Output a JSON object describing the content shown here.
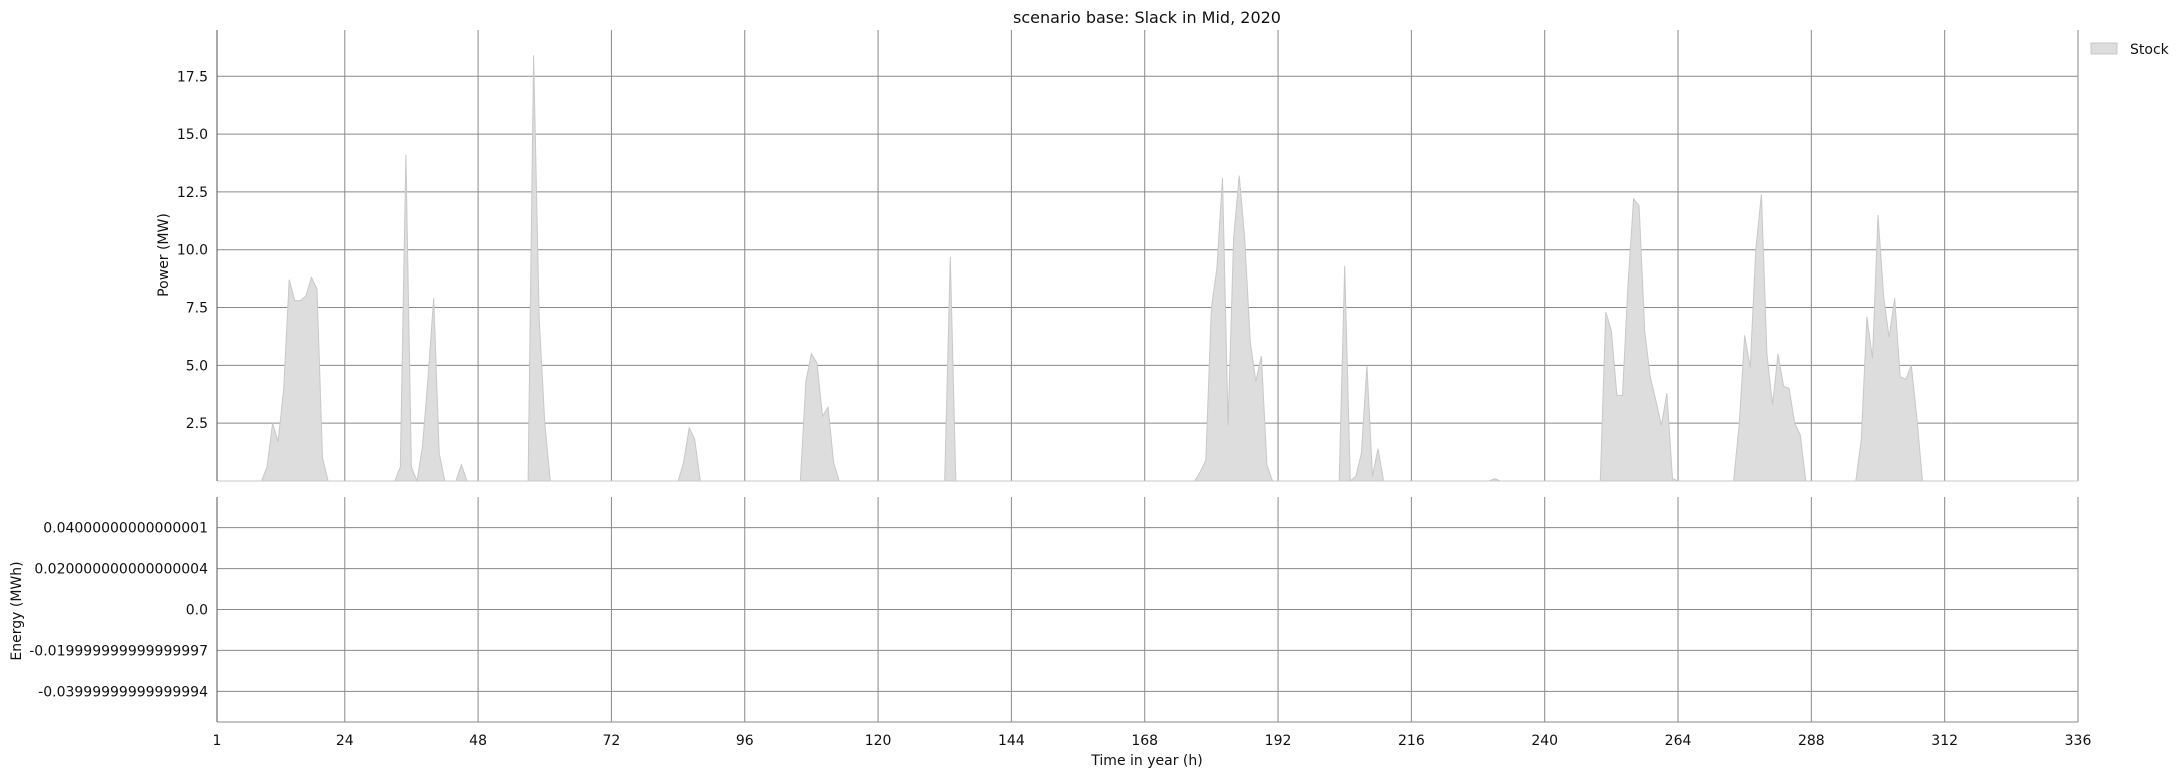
{
  "chart_data": {
    "type": "area",
    "title": "scenario base: Slack in Mid, 2020",
    "xlabel": "Time in year (h)",
    "x_ticks": [
      1,
      24,
      48,
      72,
      96,
      120,
      144,
      168,
      192,
      216,
      240,
      264,
      288,
      312,
      336
    ],
    "xlim": [
      1,
      336
    ],
    "grid": true,
    "legend": {
      "position": "top-right",
      "entries": [
        {
          "label": "Stock",
          "color": "#dddddd"
        }
      ]
    },
    "panels": [
      {
        "ylabel": "Power (MW)",
        "ylim": [
          0,
          19.5
        ],
        "y_ticks": [
          "2.5",
          "5.0",
          "7.5",
          "10.0",
          "12.5",
          "15.0",
          "17.5"
        ],
        "y_tick_values": [
          2.5,
          5.0,
          7.5,
          10.0,
          12.5,
          15.0,
          17.5
        ],
        "series": [
          {
            "name": "Stock",
            "color": "#dddddd",
            "edge_color": "#c8c8c8",
            "points": [
              [
                1,
                0
              ],
              [
                9,
                0
              ],
              [
                10,
                0.6
              ],
              [
                11,
                2.5
              ],
              [
                12,
                1.7
              ],
              [
                13,
                4
              ],
              [
                14,
                8.7
              ],
              [
                15,
                7.8
              ],
              [
                16,
                7.8
              ],
              [
                17,
                8
              ],
              [
                18,
                8.8
              ],
              [
                19,
                8.3
              ],
              [
                20,
                1
              ],
              [
                21,
                0
              ],
              [
                33,
                0
              ],
              [
                34,
                0.6
              ],
              [
                35,
                14.1
              ],
              [
                36,
                0.6
              ],
              [
                37,
                0
              ],
              [
                38,
                1.5
              ],
              [
                39,
                4.5
              ],
              [
                40,
                7.9
              ],
              [
                41,
                1.2
              ],
              [
                42,
                0
              ],
              [
                44,
                0
              ],
              [
                45,
                0.7
              ],
              [
                46,
                0
              ],
              [
                57,
                0
              ],
              [
                58,
                18.4
              ],
              [
                59,
                7
              ],
              [
                60,
                2.5
              ],
              [
                61,
                0
              ],
              [
                84,
                0
              ],
              [
                85,
                0.8
              ],
              [
                86,
                2.3
              ],
              [
                87,
                1.8
              ],
              [
                88,
                0
              ],
              [
                106,
                0
              ],
              [
                107,
                4.3
              ],
              [
                108,
                5.5
              ],
              [
                109,
                5.1
              ],
              [
                110,
                2.8
              ],
              [
                111,
                3.2
              ],
              [
                112,
                0.8
              ],
              [
                113,
                0
              ],
              [
                132,
                0
              ],
              [
                133,
                9.7
              ],
              [
                134,
                0
              ],
              [
                177,
                0
              ],
              [
                178,
                0.4
              ],
              [
                179,
                0.9
              ],
              [
                180,
                7.5
              ],
              [
                181,
                9.2
              ],
              [
                182,
                13.1
              ],
              [
                183,
                2.4
              ],
              [
                184,
                10.5
              ],
              [
                185,
                13.2
              ],
              [
                186,
                10.5
              ],
              [
                187,
                6
              ],
              [
                188,
                4.3
              ],
              [
                189,
                5.4
              ],
              [
                190,
                0.7
              ],
              [
                191,
                0
              ],
              [
                203,
                0
              ],
              [
                204,
                9.3
              ],
              [
                205,
                0
              ],
              [
                206,
                0.2
              ],
              [
                207,
                1.2
              ],
              [
                208,
                5
              ],
              [
                209,
                0.2
              ],
              [
                210,
                1.4
              ],
              [
                211,
                0
              ],
              [
                230,
                0
              ],
              [
                231,
                0.1
              ],
              [
                232,
                0
              ],
              [
                250,
                0
              ],
              [
                251,
                7.3
              ],
              [
                252,
                6.5
              ],
              [
                253,
                3.7
              ],
              [
                254,
                3.7
              ],
              [
                255,
                8.5
              ],
              [
                256,
                12.2
              ],
              [
                257,
                11.9
              ],
              [
                258,
                6.5
              ],
              [
                259,
                4.5
              ],
              [
                260,
                3.5
              ],
              [
                261,
                2.4
              ],
              [
                262,
                3.8
              ],
              [
                263,
                0.1
              ],
              [
                264,
                0
              ],
              [
                274,
                0
              ],
              [
                275,
                2.4
              ],
              [
                276,
                6.3
              ],
              [
                277,
                4.9
              ],
              [
                278,
                10
              ],
              [
                279,
                12.4
              ],
              [
                280,
                5.5
              ],
              [
                281,
                3.3
              ],
              [
                282,
                5.5
              ],
              [
                283,
                4.1
              ],
              [
                284,
                4
              ],
              [
                285,
                2.5
              ],
              [
                286,
                2
              ],
              [
                287,
                0
              ],
              [
                296,
                0
              ],
              [
                297,
                1.8
              ],
              [
                298,
                7.1
              ],
              [
                299,
                5.3
              ],
              [
                300,
                11.5
              ],
              [
                301,
                8
              ],
              [
                302,
                6.2
              ],
              [
                303,
                7.9
              ],
              [
                304,
                4.5
              ],
              [
                305,
                4.4
              ],
              [
                306,
                5
              ],
              [
                307,
                2.7
              ],
              [
                308,
                0
              ],
              [
                336,
                0
              ]
            ]
          }
        ]
      },
      {
        "ylabel": "Energy (MWh)",
        "ylim": [
          -0.055,
          0.055
        ],
        "y_ticks": [
          "-0.03999999999999994",
          "-0.019999999999999997",
          "0.0",
          "0.020000000000000004",
          "0.04000000000000001"
        ],
        "y_tick_values": [
          -0.04,
          -0.02,
          0.0,
          0.02,
          0.04
        ],
        "series": []
      }
    ]
  }
}
